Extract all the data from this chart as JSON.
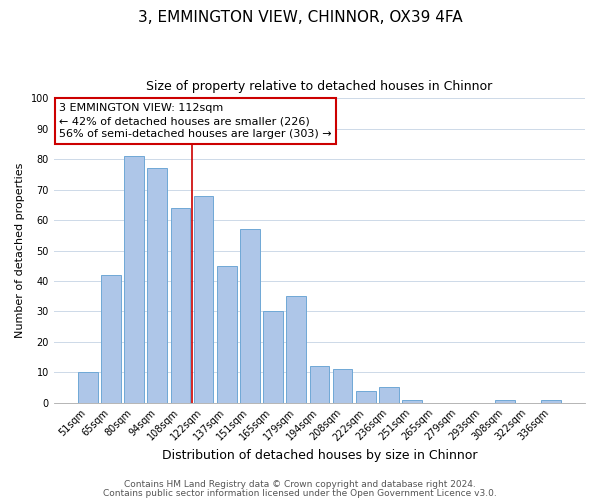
{
  "title": "3, EMMINGTON VIEW, CHINNOR, OX39 4FA",
  "subtitle": "Size of property relative to detached houses in Chinnor",
  "xlabel": "Distribution of detached houses by size in Chinnor",
  "ylabel": "Number of detached properties",
  "bar_labels": [
    "51sqm",
    "65sqm",
    "80sqm",
    "94sqm",
    "108sqm",
    "122sqm",
    "137sqm",
    "151sqm",
    "165sqm",
    "179sqm",
    "194sqm",
    "208sqm",
    "222sqm",
    "236sqm",
    "251sqm",
    "265sqm",
    "279sqm",
    "293sqm",
    "308sqm",
    "322sqm",
    "336sqm"
  ],
  "bar_values": [
    10,
    42,
    81,
    77,
    64,
    68,
    45,
    57,
    30,
    35,
    12,
    11,
    4,
    5,
    1,
    0,
    0,
    0,
    1,
    0,
    1
  ],
  "bar_color": "#aec6e8",
  "bar_edgecolor": "#6fa8d6",
  "vline_x": 4.5,
  "vline_color": "#cc0000",
  "annotation_line1": "3 EMMINGTON VIEW: 112sqm",
  "annotation_line2": "← 42% of detached houses are smaller (226)",
  "annotation_line3": "56% of semi-detached houses are larger (303) →",
  "ylim": [
    0,
    100
  ],
  "yticks": [
    0,
    10,
    20,
    30,
    40,
    50,
    60,
    70,
    80,
    90,
    100
  ],
  "footer_line1": "Contains HM Land Registry data © Crown copyright and database right 2024.",
  "footer_line2": "Contains public sector information licensed under the Open Government Licence v3.0.",
  "background_color": "#ffffff",
  "grid_color": "#cdd9e8",
  "title_fontsize": 11,
  "subtitle_fontsize": 9,
  "xlabel_fontsize": 9,
  "ylabel_fontsize": 8,
  "tick_fontsize": 7,
  "annotation_fontsize": 8,
  "footer_fontsize": 6.5
}
